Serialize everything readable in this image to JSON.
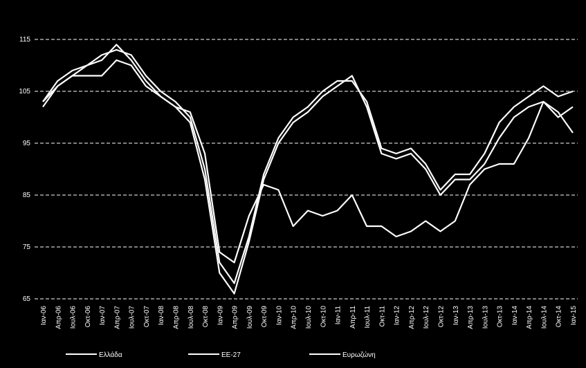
{
  "chart_data": {
    "type": "line",
    "categories": [
      "Ιαν-06",
      "Απρ-06",
      "Ιουλ-06",
      "Οκτ-06",
      "Ιαν-07",
      "Απρ-07",
      "Ιουλ-07",
      "Οκτ-07",
      "Ιαν-08",
      "Απρ-08",
      "Ιουλ-08",
      "Οκτ-08",
      "Ιαν-09",
      "Απρ-09",
      "Ιουλ-09",
      "Οκτ-09",
      "Ιαν-10",
      "Απρ-10",
      "Ιουλ-10",
      "Οκτ-10",
      "Ιαν-11",
      "Απρ-11",
      "Ιουλ-11",
      "Οκτ-11",
      "Ιαν-12",
      "Απρ-12",
      "Ιουλ-12",
      "Οκτ-12",
      "Ιαν-13",
      "Απρ-13",
      "Ιουλ-13",
      "Οκτ-13",
      "Ιαν-14",
      "Απρ-14",
      "Ιουλ-14",
      "Οκτ-14",
      "Ιαν-15"
    ],
    "series": [
      {
        "name": "Ελλάδα",
        "color": "#ffffff",
        "values": [
          102,
          106,
          108,
          108,
          108,
          111,
          110,
          106,
          104,
          102,
          101,
          93,
          74,
          72,
          81,
          87,
          86,
          79,
          82,
          81,
          82,
          85,
          79,
          79,
          77,
          78,
          80,
          78,
          80,
          87,
          90,
          91,
          91,
          96,
          103,
          101,
          97
        ]
      },
      {
        "name": "ΕΕ-27",
        "color": "#ffffff",
        "values": [
          103,
          107,
          109,
          110,
          112,
          113,
          112,
          108,
          105,
          103,
          100,
          90,
          72,
          68,
          77,
          89,
          96,
          100,
          102,
          105,
          107,
          107,
          103,
          94,
          93,
          94,
          91,
          86,
          89,
          89,
          93,
          99,
          102,
          104,
          106,
          104,
          105
        ]
      },
      {
        "name": "Ευρωζώνη",
        "color": "#ffffff",
        "values": [
          103,
          106,
          108,
          110,
          111,
          114,
          111,
          107,
          104,
          102,
          99,
          88,
          70,
          66,
          76,
          88,
          95,
          99,
          101,
          104,
          106,
          108,
          102,
          93,
          92,
          93,
          90,
          85,
          88,
          88,
          91,
          96,
          100,
          102,
          103,
          100,
          102
        ]
      }
    ],
    "ylim": [
      65,
      115
    ],
    "yticks": [
      65,
      75,
      85,
      95,
      105,
      115
    ],
    "grid": true
  }
}
